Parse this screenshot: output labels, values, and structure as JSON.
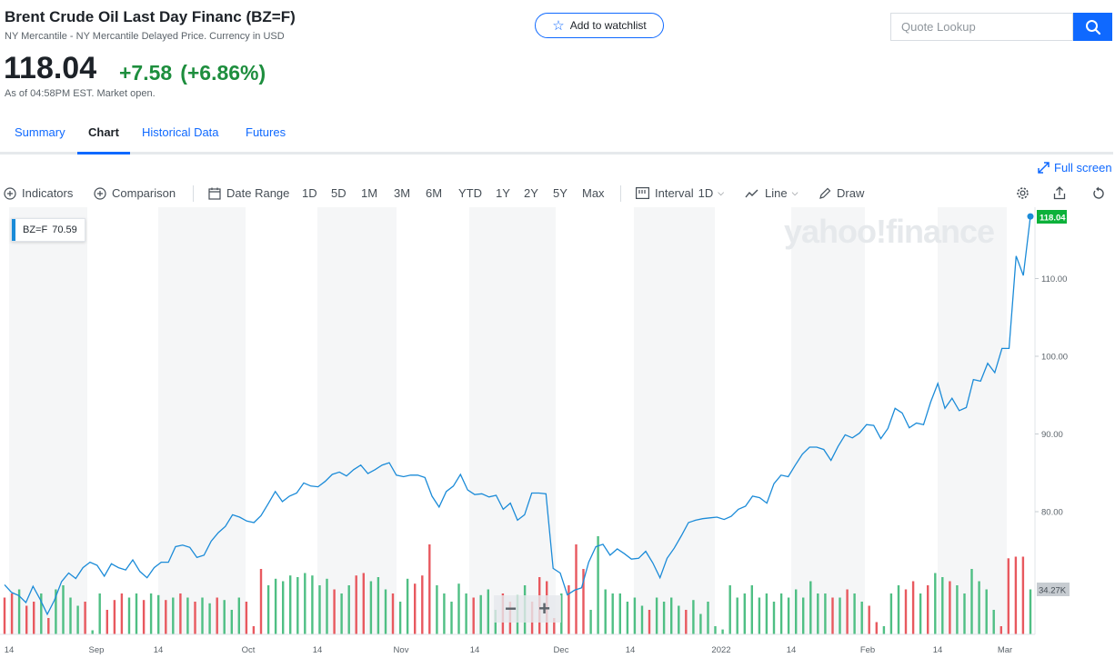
{
  "header": {
    "title": "Brent Crude Oil Last Day Financ (BZ=F)",
    "subtitle": "NY Mercantile - NY Mercantile Delayed Price. Currency in USD",
    "price": "118.04",
    "change": "+7.58",
    "change_pct": "(+6.86%)",
    "as_of": "As of 04:58PM EST. Market open.",
    "watchlist_label": "Add to watchlist",
    "quote_placeholder": "Quote Lookup"
  },
  "tabs": [
    {
      "label": "Summary"
    },
    {
      "label": "Chart",
      "active": true
    },
    {
      "label": "Historical Data"
    },
    {
      "label": "Futures"
    }
  ],
  "fullscreen_label": "Full screen",
  "toolbar": {
    "indicators": "Indicators",
    "comparison": "Comparison",
    "date_range": "Date Range",
    "ranges": [
      "1D",
      "5D",
      "1M",
      "3M",
      "6M",
      "YTD",
      "1Y",
      "2Y",
      "5Y",
      "Max"
    ],
    "interval_label": "Interval",
    "interval_value": "1D",
    "line_label": "Line",
    "draw_label": "Draw"
  },
  "legend": {
    "symbol": "BZ=F",
    "value": "70.59"
  },
  "watermark": "yahoo!finance",
  "chart_data": {
    "type": "line",
    "x_labels": [
      "14",
      "Sep",
      "14",
      "Oct",
      "14",
      "Nov",
      "14",
      "Dec",
      "14",
      "2022",
      "14",
      "Feb",
      "14",
      "Mar"
    ],
    "y_ticks": [
      "110.00",
      "100.00",
      "90.00",
      "80.00"
    ],
    "ylim": [
      70,
      120
    ],
    "last_price_label": "118.04",
    "volume_label": "34.27K",
    "series": [
      {
        "values": [
          70.6,
          69.6,
          69.2,
          68.3,
          70.4,
          68.7,
          66.8,
          68.6,
          71.0,
          72.1,
          71.4,
          72.8,
          73.5,
          73.1,
          71.7,
          73.3,
          72.8,
          72.5,
          73.8,
          72.3,
          71.5,
          72.8,
          73.5,
          73.5,
          75.5,
          75.7,
          75.4,
          74.1,
          74.4,
          76.2,
          77.3,
          78.1,
          79.6,
          79.3,
          78.8,
          78.6,
          79.5,
          81.0,
          82.6,
          81.3,
          82.0,
          82.4,
          83.7,
          83.3,
          83.2,
          83.9,
          84.8,
          85.1,
          84.6,
          85.4,
          86.0,
          84.9,
          85.4,
          86.0,
          86.3,
          84.7,
          84.5,
          84.7,
          84.7,
          84.4,
          82.0,
          80.6,
          82.6,
          83.3,
          84.8,
          82.8,
          82.2,
          82.3,
          81.9,
          82.1,
          80.3,
          81.1,
          78.9,
          79.6,
          82.4,
          82.4,
          82.3,
          72.7,
          72.1,
          69.3,
          69.9,
          70.2,
          73.5,
          75.5,
          75.8,
          74.4,
          75.2,
          74.6,
          73.9,
          74.0,
          74.9,
          73.4,
          71.5,
          74.0,
          75.3,
          76.9,
          78.6,
          78.9,
          79.1,
          79.2,
          79.3,
          79.0,
          79.4,
          80.3,
          80.7,
          82.0,
          81.8,
          81.1,
          83.6,
          84.7,
          84.5,
          86.0,
          87.4,
          88.3,
          88.3,
          88.0,
          86.6,
          88.4,
          89.9,
          89.5,
          90.1,
          91.2,
          91.1,
          89.4,
          90.7,
          93.3,
          92.7,
          90.8,
          91.4,
          91.2,
          94.1,
          96.5,
          93.3,
          94.6,
          93.0,
          93.4,
          97.0,
          96.8,
          99.1,
          97.9,
          101.0,
          101.0,
          112.9,
          110.4,
          118.0
        ]
      }
    ],
    "volume": [
      {
        "v": 0.45,
        "d": "down"
      },
      {
        "v": 0.5,
        "d": "down"
      },
      {
        "v": 0.55,
        "d": "up"
      },
      {
        "v": 0.35,
        "d": "down"
      },
      {
        "v": 0.4,
        "d": "down"
      },
      {
        "v": 0.5,
        "d": "up"
      },
      {
        "v": 0.2,
        "d": "down"
      },
      {
        "v": 0.55,
        "d": "up"
      },
      {
        "v": 0.6,
        "d": "up"
      },
      {
        "v": 0.45,
        "d": "up"
      },
      {
        "v": 0.35,
        "d": "up"
      },
      {
        "v": 0.4,
        "d": "down"
      },
      {
        "v": 0.05,
        "d": "up"
      },
      {
        "v": 0.5,
        "d": "up"
      },
      {
        "v": 0.3,
        "d": "down"
      },
      {
        "v": 0.42,
        "d": "down"
      },
      {
        "v": 0.5,
        "d": "down"
      },
      {
        "v": 0.45,
        "d": "up"
      },
      {
        "v": 0.5,
        "d": "up"
      },
      {
        "v": 0.42,
        "d": "down"
      },
      {
        "v": 0.5,
        "d": "up"
      },
      {
        "v": 0.48,
        "d": "up"
      },
      {
        "v": 0.42,
        "d": "down"
      },
      {
        "v": 0.45,
        "d": "up"
      },
      {
        "v": 0.5,
        "d": "down"
      },
      {
        "v": 0.45,
        "d": "up"
      },
      {
        "v": 0.4,
        "d": "down"
      },
      {
        "v": 0.45,
        "d": "up"
      },
      {
        "v": 0.38,
        "d": "up"
      },
      {
        "v": 0.45,
        "d": "down"
      },
      {
        "v": 0.42,
        "d": "up"
      },
      {
        "v": 0.3,
        "d": "up"
      },
      {
        "v": 0.45,
        "d": "up"
      },
      {
        "v": 0.4,
        "d": "down"
      },
      {
        "v": 0.1,
        "d": "down"
      },
      {
        "v": 0.8,
        "d": "down"
      },
      {
        "v": 0.6,
        "d": "up"
      },
      {
        "v": 0.68,
        "d": "up"
      },
      {
        "v": 0.65,
        "d": "up"
      },
      {
        "v": 0.72,
        "d": "up"
      },
      {
        "v": 0.7,
        "d": "up"
      },
      {
        "v": 0.75,
        "d": "up"
      },
      {
        "v": 0.72,
        "d": "up"
      },
      {
        "v": 0.6,
        "d": "up"
      },
      {
        "v": 0.68,
        "d": "up"
      },
      {
        "v": 0.55,
        "d": "down"
      },
      {
        "v": 0.5,
        "d": "up"
      },
      {
        "v": 0.6,
        "d": "up"
      },
      {
        "v": 0.72,
        "d": "down"
      },
      {
        "v": 0.75,
        "d": "down"
      },
      {
        "v": 0.65,
        "d": "up"
      },
      {
        "v": 0.7,
        "d": "up"
      },
      {
        "v": 0.55,
        "d": "up"
      },
      {
        "v": 0.5,
        "d": "down"
      },
      {
        "v": 0.4,
        "d": "up"
      },
      {
        "v": 0.68,
        "d": "up"
      },
      {
        "v": 0.62,
        "d": "down"
      },
      {
        "v": 0.72,
        "d": "down"
      },
      {
        "v": 1.1,
        "d": "down"
      },
      {
        "v": 0.6,
        "d": "up"
      },
      {
        "v": 0.5,
        "d": "up"
      },
      {
        "v": 0.4,
        "d": "up"
      },
      {
        "v": 0.62,
        "d": "up"
      },
      {
        "v": 0.5,
        "d": "up"
      },
      {
        "v": 0.45,
        "d": "down"
      },
      {
        "v": 0.48,
        "d": "up"
      },
      {
        "v": 0.55,
        "d": "up"
      },
      {
        "v": 0.3,
        "d": "up"
      },
      {
        "v": 0.5,
        "d": "down"
      },
      {
        "v": 0.4,
        "d": "down"
      },
      {
        "v": 0.48,
        "d": "up"
      },
      {
        "v": 0.6,
        "d": "up"
      },
      {
        "v": 0.4,
        "d": "down"
      },
      {
        "v": 0.7,
        "d": "down"
      },
      {
        "v": 0.65,
        "d": "down"
      },
      {
        "v": 0.2,
        "d": "down"
      },
      {
        "v": 0.5,
        "d": "up"
      },
      {
        "v": 0.6,
        "d": "down"
      },
      {
        "v": 1.1,
        "d": "down"
      },
      {
        "v": 0.8,
        "d": "down"
      },
      {
        "v": 0.3,
        "d": "up"
      },
      {
        "v": 1.2,
        "d": "up"
      },
      {
        "v": 0.55,
        "d": "up"
      },
      {
        "v": 0.5,
        "d": "up"
      },
      {
        "v": 0.5,
        "d": "up"
      },
      {
        "v": 0.4,
        "d": "up"
      },
      {
        "v": 0.45,
        "d": "up"
      },
      {
        "v": 0.35,
        "d": "up"
      },
      {
        "v": 0.3,
        "d": "down"
      },
      {
        "v": 0.45,
        "d": "up"
      },
      {
        "v": 0.4,
        "d": "up"
      },
      {
        "v": 0.45,
        "d": "up"
      },
      {
        "v": 0.35,
        "d": "up"
      },
      {
        "v": 0.3,
        "d": "down"
      },
      {
        "v": 0.42,
        "d": "up"
      },
      {
        "v": 0.25,
        "d": "up"
      },
      {
        "v": 0.4,
        "d": "up"
      },
      {
        "v": 0.1,
        "d": "up"
      },
      {
        "v": 0.06,
        "d": "up"
      },
      {
        "v": 0.6,
        "d": "up"
      },
      {
        "v": 0.45,
        "d": "up"
      },
      {
        "v": 0.5,
        "d": "up"
      },
      {
        "v": 0.6,
        "d": "up"
      },
      {
        "v": 0.45,
        "d": "up"
      },
      {
        "v": 0.5,
        "d": "up"
      },
      {
        "v": 0.4,
        "d": "up"
      },
      {
        "v": 0.5,
        "d": "up"
      },
      {
        "v": 0.45,
        "d": "up"
      },
      {
        "v": 0.55,
        "d": "up"
      },
      {
        "v": 0.45,
        "d": "up"
      },
      {
        "v": 0.65,
        "d": "up"
      },
      {
        "v": 0.5,
        "d": "up"
      },
      {
        "v": 0.5,
        "d": "up"
      },
      {
        "v": 0.45,
        "d": "down"
      },
      {
        "v": 0.45,
        "d": "up"
      },
      {
        "v": 0.55,
        "d": "down"
      },
      {
        "v": 0.5,
        "d": "up"
      },
      {
        "v": 0.4,
        "d": "up"
      },
      {
        "v": 0.35,
        "d": "down"
      },
      {
        "v": 0.15,
        "d": "down"
      },
      {
        "v": 0.1,
        "d": "up"
      },
      {
        "v": 0.5,
        "d": "up"
      },
      {
        "v": 0.6,
        "d": "up"
      },
      {
        "v": 0.55,
        "d": "down"
      },
      {
        "v": 0.65,
        "d": "down"
      },
      {
        "v": 0.5,
        "d": "up"
      },
      {
        "v": 0.6,
        "d": "down"
      },
      {
        "v": 0.75,
        "d": "up"
      },
      {
        "v": 0.7,
        "d": "up"
      },
      {
        "v": 0.65,
        "d": "down"
      },
      {
        "v": 0.6,
        "d": "up"
      },
      {
        "v": 0.5,
        "d": "up"
      },
      {
        "v": 0.8,
        "d": "up"
      },
      {
        "v": 0.65,
        "d": "up"
      },
      {
        "v": 0.55,
        "d": "up"
      },
      {
        "v": 0.3,
        "d": "up"
      },
      {
        "v": 0.1,
        "d": "down"
      },
      {
        "v": 0.93,
        "d": "down"
      },
      {
        "v": 0.95,
        "d": "down"
      },
      {
        "v": 0.95,
        "d": "down"
      },
      {
        "v": 0.55,
        "d": "up"
      }
    ]
  },
  "colors": {
    "accent": "#0f69ff",
    "positive": "#1e8e3e",
    "line": "#1b8bd8",
    "vol_up": "#4fbf84",
    "vol_down": "#e8595f",
    "price_tag": "#0cb13a"
  }
}
